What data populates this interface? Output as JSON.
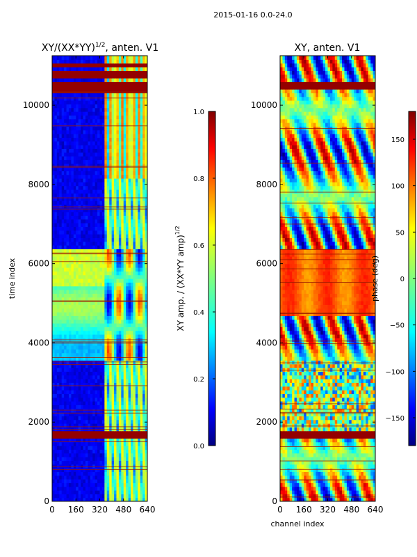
{
  "figure": {
    "suptitle": "2015-01-16 0.0-24.0"
  },
  "chart_data": [
    {
      "type": "heatmap",
      "title_main": "XY/(XX*YY)",
      "title_sup": "1/2",
      "title_tail": ", anten. V1",
      "xlabel": "",
      "ylabel": "time index",
      "xlim": [
        0,
        640
      ],
      "ylim": [
        0,
        11250
      ],
      "xticks": [
        0,
        160,
        320,
        480,
        640
      ],
      "yticks": [
        0,
        2000,
        4000,
        6000,
        8000,
        10000
      ],
      "colorbar": {
        "label_main": "XY amp. / (XX*YY amp)",
        "label_sup": "1/2",
        "range": [
          0.0,
          1.0
        ],
        "ticks": [
          "0.0",
          "0.2",
          "0.4",
          "0.6",
          "0.8",
          "1.0"
        ],
        "colormap": "jet"
      },
      "saturated_time_bands": [
        [
          1600,
          1800
        ],
        [
          10300,
          10600
        ],
        [
          10700,
          10850
        ],
        [
          11000,
          11100
        ]
      ],
      "bright_time_band": [
        3600,
        6350
      ],
      "active_channel_band": [
        350,
        640
      ]
    },
    {
      "type": "heatmap",
      "title": "XY, anten. V1",
      "xlabel": "channel index",
      "ylabel": "",
      "xlim": [
        0,
        640
      ],
      "ylim": [
        0,
        11250
      ],
      "xticks": [
        0,
        160,
        320,
        480,
        640
      ],
      "yticks": [
        0,
        2000,
        4000,
        6000,
        8000,
        10000
      ],
      "colorbar": {
        "label": "phase (deg)",
        "range": [
          -180,
          180
        ],
        "ticks": [
          "−150",
          "−100",
          "−50",
          "0",
          "50",
          "100",
          "150"
        ],
        "colormap": "jet"
      },
      "saturated_time_bands": [
        [
          1600,
          1800
        ],
        [
          10400,
          10600
        ]
      ],
      "orange_time_band": [
        4700,
        6350
      ]
    }
  ],
  "colors": {
    "jet_dark_blue": "#00007f",
    "jet_blue": "#0000ff",
    "jet_cyan": "#00ffff",
    "jet_yellow": "#ffff00",
    "jet_red": "#ff0000",
    "jet_dark_red": "#7f0000"
  }
}
